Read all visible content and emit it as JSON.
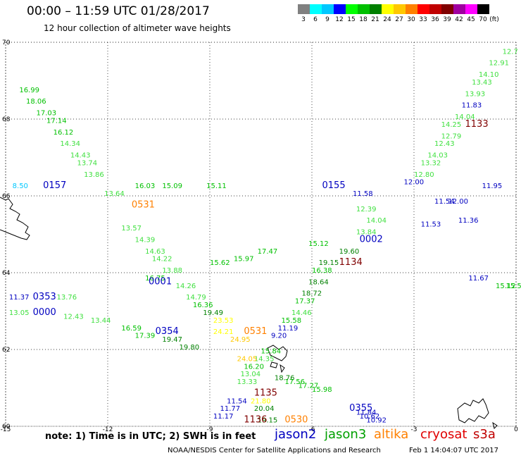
{
  "title": "00:00 – 11:59 UTC 01/28/2017",
  "subtitle": "12 hour collection of altimeter wave heights",
  "colorbar": {
    "unit": "(ft)",
    "ticks": [
      "3",
      "6",
      "9",
      "12",
      "15",
      "18",
      "21",
      "24",
      "27",
      "30",
      "33",
      "36",
      "39",
      "42",
      "45",
      "70"
    ],
    "colors": [
      "#808080",
      "#00ffff",
      "#00c8ff",
      "#0000ff",
      "#00ff00",
      "#00c000",
      "#008000",
      "#ffff00",
      "#ffc800",
      "#ff8000",
      "#ff0000",
      "#c00000",
      "#800000",
      "#a000a0",
      "#ff00ff",
      "#000000"
    ]
  },
  "axes": {
    "x_ticks": [
      "-15",
      "-12",
      "-9",
      "-6",
      "-3",
      "0"
    ],
    "y_ticks": [
      "70",
      "68",
      "66",
      "64",
      "62",
      "60"
    ]
  },
  "track_labels": [
    {
      "text": "0157",
      "color": "#0000c0",
      "lon": -13.9,
      "lat": 66.2
    },
    {
      "text": "0531",
      "color": "#ff8000",
      "lon": -11.3,
      "lat": 65.7
    },
    {
      "text": "0155",
      "color": "#0000c0",
      "lon": -5.7,
      "lat": 66.2
    },
    {
      "text": "0002",
      "color": "#0000c0",
      "lon": -4.6,
      "lat": 64.8
    },
    {
      "text": "1134",
      "color": "#800000",
      "lon": -5.2,
      "lat": 64.2
    },
    {
      "text": "1133",
      "color": "#800000",
      "lon": -1.5,
      "lat": 67.8
    },
    {
      "text": "0001",
      "color": "#0000c0",
      "lon": -10.8,
      "lat": 63.7
    },
    {
      "text": "0353",
      "color": "#0000c0",
      "lon": -14.2,
      "lat": 63.3
    },
    {
      "text": "0000",
      "color": "#0000c0",
      "lon": -14.2,
      "lat": 62.9
    },
    {
      "text": "0354",
      "color": "#0000c0",
      "lon": -10.6,
      "lat": 62.4
    },
    {
      "text": "0531",
      "color": "#ff8000",
      "lon": -8.0,
      "lat": 62.4
    },
    {
      "text": "1135",
      "color": "#800000",
      "lon": -7.7,
      "lat": 60.8
    },
    {
      "text": "1136",
      "color": "#800000",
      "lon": -8.0,
      "lat": 60.1
    },
    {
      "text": "0530",
      "color": "#ff8000",
      "lon": -6.8,
      "lat": 60.1
    },
    {
      "text": "0355",
      "color": "#0000c0",
      "lon": -4.9,
      "lat": 60.4
    }
  ],
  "wave_values": [
    {
      "text": "16.99",
      "color": "#00c000",
      "lon": -14.6,
      "lat": 68.7
    },
    {
      "text": "18.06",
      "color": "#00c000",
      "lon": -14.4,
      "lat": 68.4
    },
    {
      "text": "17.03",
      "color": "#00c000",
      "lon": -14.1,
      "lat": 68.1
    },
    {
      "text": "17.14",
      "color": "#00c000",
      "lon": -13.8,
      "lat": 67.9
    },
    {
      "text": "16.12",
      "color": "#00c000",
      "lon": -13.6,
      "lat": 67.6
    },
    {
      "text": "14.34",
      "color": "#40e040",
      "lon": -13.4,
      "lat": 67.3
    },
    {
      "text": "14.43",
      "color": "#40e040",
      "lon": -13.1,
      "lat": 67.0
    },
    {
      "text": "13.74",
      "color": "#40e040",
      "lon": -12.9,
      "lat": 66.8
    },
    {
      "text": "13.86",
      "color": "#40e040",
      "lon": -12.7,
      "lat": 66.5
    },
    {
      "text": "8.50",
      "color": "#00c8ff",
      "lon": -14.8,
      "lat": 66.2
    },
    {
      "text": "16.03",
      "color": "#00c000",
      "lon": -11.2,
      "lat": 66.2
    },
    {
      "text": "15.09",
      "color": "#00c000",
      "lon": -10.4,
      "lat": 66.2
    },
    {
      "text": "15.11",
      "color": "#00c000",
      "lon": -9.1,
      "lat": 66.2
    },
    {
      "text": "13.64",
      "color": "#40e040",
      "lon": -12.1,
      "lat": 66.0
    },
    {
      "text": "13.57",
      "color": "#40e040",
      "lon": -11.6,
      "lat": 65.1
    },
    {
      "text": "14.39",
      "color": "#40e040",
      "lon": -11.2,
      "lat": 64.8
    },
    {
      "text": "14.63",
      "color": "#40e040",
      "lon": -10.9,
      "lat": 64.5
    },
    {
      "text": "14.22",
      "color": "#40e040",
      "lon": -10.7,
      "lat": 64.3
    },
    {
      "text": "13.88",
      "color": "#40e040",
      "lon": -10.4,
      "lat": 64.0
    },
    {
      "text": "16.75",
      "color": "#00c000",
      "lon": -10.9,
      "lat": 63.8
    },
    {
      "text": "14.26",
      "color": "#40e040",
      "lon": -10.0,
      "lat": 63.6
    },
    {
      "text": "14.79",
      "color": "#40e040",
      "lon": -9.7,
      "lat": 63.3
    },
    {
      "text": "16.36",
      "color": "#00c000",
      "lon": -9.5,
      "lat": 63.1
    },
    {
      "text": "19.49",
      "color": "#008000",
      "lon": -9.2,
      "lat": 62.9
    },
    {
      "text": "15.62",
      "color": "#00c000",
      "lon": -9.0,
      "lat": 64.2
    },
    {
      "text": "15.97",
      "color": "#00c000",
      "lon": -8.3,
      "lat": 64.3
    },
    {
      "text": "17.47",
      "color": "#00c000",
      "lon": -7.6,
      "lat": 64.5
    },
    {
      "text": "15.12",
      "color": "#00c000",
      "lon": -6.1,
      "lat": 64.7
    },
    {
      "text": "19.60",
      "color": "#008000",
      "lon": -5.2,
      "lat": 64.5
    },
    {
      "text": "19.15",
      "color": "#008000",
      "lon": -5.8,
      "lat": 64.2
    },
    {
      "text": "16.38",
      "color": "#00c000",
      "lon": -6.0,
      "lat": 64.0
    },
    {
      "text": "18.64",
      "color": "#008000",
      "lon": -6.1,
      "lat": 63.7
    },
    {
      "text": "18.72",
      "color": "#008000",
      "lon": -6.3,
      "lat": 63.4
    },
    {
      "text": "17.37",
      "color": "#00c000",
      "lon": -6.5,
      "lat": 63.2
    },
    {
      "text": "14.46",
      "color": "#40e040",
      "lon": -6.6,
      "lat": 62.9
    },
    {
      "text": "15.58",
      "color": "#00c000",
      "lon": -6.9,
      "lat": 62.7
    },
    {
      "text": "11.19",
      "color": "#0000c0",
      "lon": -7.0,
      "lat": 62.5
    },
    {
      "text": "9.20",
      "color": "#0000c0",
      "lon": -7.2,
      "lat": 62.3
    },
    {
      "text": "15.84",
      "color": "#00c000",
      "lon": -7.5,
      "lat": 61.9
    },
    {
      "text": "14.35",
      "color": "#40e040",
      "lon": -7.7,
      "lat": 61.7
    },
    {
      "text": "16.20",
      "color": "#00c000",
      "lon": -8.0,
      "lat": 61.5
    },
    {
      "text": "18.76",
      "color": "#008000",
      "lon": -7.1,
      "lat": 61.2
    },
    {
      "text": "17.56",
      "color": "#00c000",
      "lon": -6.8,
      "lat": 61.1
    },
    {
      "text": "17.27",
      "color": "#00c000",
      "lon": -6.4,
      "lat": 61.0
    },
    {
      "text": "15.98",
      "color": "#00c000",
      "lon": -6.0,
      "lat": 60.9
    },
    {
      "text": "13.33",
      "color": "#40e040",
      "lon": -8.2,
      "lat": 61.1
    },
    {
      "text": "13.04",
      "color": "#40e040",
      "lon": -8.1,
      "lat": 61.3
    },
    {
      "text": "11.54",
      "color": "#0000c0",
      "lon": -8.5,
      "lat": 60.6
    },
    {
      "text": "11.77",
      "color": "#0000c0",
      "lon": -8.7,
      "lat": 60.4
    },
    {
      "text": "11.17",
      "color": "#0000c0",
      "lon": -8.9,
      "lat": 60.2
    },
    {
      "text": "20.04",
      "color": "#008000",
      "lon": -7.7,
      "lat": 60.4
    },
    {
      "text": "19.15",
      "color": "#008000",
      "lon": -7.6,
      "lat": 60.1
    },
    {
      "text": "23.53",
      "color": "#ffff00",
      "lon": -8.9,
      "lat": 62.7
    },
    {
      "text": "24.21",
      "color": "#ffff00",
      "lon": -8.9,
      "lat": 62.4
    },
    {
      "text": "24.95",
      "color": "#ffc800",
      "lon": -8.4,
      "lat": 62.2
    },
    {
      "text": "24.05",
      "color": "#ffc800",
      "lon": -8.2,
      "lat": 61.7
    },
    {
      "text": "21.80",
      "color": "#ffff00",
      "lon": -7.8,
      "lat": 60.6
    },
    {
      "text": "11.37",
      "color": "#0000c0",
      "lon": -14.9,
      "lat": 63.3
    },
    {
      "text": "13.76",
      "color": "#40e040",
      "lon": -13.5,
      "lat": 63.3
    },
    {
      "text": "13.05",
      "color": "#40e040",
      "lon": -14.9,
      "lat": 62.9
    },
    {
      "text": "12.43",
      "color": "#40e040",
      "lon": -13.3,
      "lat": 62.8
    },
    {
      "text": "13.44",
      "color": "#40e040",
      "lon": -12.5,
      "lat": 62.7
    },
    {
      "text": "16.59",
      "color": "#00c000",
      "lon": -11.6,
      "lat": 62.5
    },
    {
      "text": "17.39",
      "color": "#00c000",
      "lon": -11.2,
      "lat": 62.3
    },
    {
      "text": "19.47",
      "color": "#008000",
      "lon": -10.4,
      "lat": 62.2
    },
    {
      "text": "19.80",
      "color": "#008000",
      "lon": -9.9,
      "lat": 62.0
    },
    {
      "text": "11.58",
      "color": "#0000c0",
      "lon": -4.8,
      "lat": 66.0
    },
    {
      "text": "12.00",
      "color": "#0000c0",
      "lon": -3.3,
      "lat": 66.3
    },
    {
      "text": "11.95",
      "color": "#0000c0",
      "lon": -1.0,
      "lat": 66.2
    },
    {
      "text": "11.54",
      "color": "#0000c0",
      "lon": -2.4,
      "lat": 65.8
    },
    {
      "text": "12.00",
      "color": "#0000c0",
      "lon": -2.0,
      "lat": 65.8
    },
    {
      "text": "11.53",
      "color": "#0000c0",
      "lon": -2.8,
      "lat": 65.2
    },
    {
      "text": "11.36",
      "color": "#0000c0",
      "lon": -1.7,
      "lat": 65.3
    },
    {
      "text": "11.67",
      "color": "#0000c0",
      "lon": -1.4,
      "lat": 63.8
    },
    {
      "text": "11.84",
      "color": "#0000c0",
      "lon": -4.7,
      "lat": 60.3
    },
    {
      "text": "10.92",
      "color": "#0000c0",
      "lon": -4.4,
      "lat": 60.1
    },
    {
      "text": "10.62",
      "color": "#0000c0",
      "lon": -4.6,
      "lat": 60.2
    },
    {
      "text": "12.39",
      "color": "#40e040",
      "lon": -4.7,
      "lat": 65.6
    },
    {
      "text": "14.04",
      "color": "#40e040",
      "lon": -4.4,
      "lat": 65.3
    },
    {
      "text": "13.84",
      "color": "#40e040",
      "lon": -4.7,
      "lat": 65.0
    },
    {
      "text": "11.83",
      "color": "#0000c0",
      "lon": -1.6,
      "lat": 68.3
    },
    {
      "text": "14.04",
      "color": "#40e040",
      "lon": -1.8,
      "lat": 68.0
    },
    {
      "text": "14.25",
      "color": "#40e040",
      "lon": -2.2,
      "lat": 67.8
    },
    {
      "text": "12.79",
      "color": "#40e040",
      "lon": -2.2,
      "lat": 67.5
    },
    {
      "text": "12.43",
      "color": "#40e040",
      "lon": -2.4,
      "lat": 67.3
    },
    {
      "text": "14.03",
      "color": "#40e040",
      "lon": -2.6,
      "lat": 67.0
    },
    {
      "text": "13.32",
      "color": "#40e040",
      "lon": -2.8,
      "lat": 66.8
    },
    {
      "text": "12.80",
      "color": "#40e040",
      "lon": -3.0,
      "lat": 66.5
    },
    {
      "text": "13.93",
      "color": "#40e040",
      "lon": -1.5,
      "lat": 68.6
    },
    {
      "text": "13.43",
      "color": "#40e040",
      "lon": -1.3,
      "lat": 68.9
    },
    {
      "text": "14.10",
      "color": "#40e040",
      "lon": -1.1,
      "lat": 69.1
    },
    {
      "text": "12.91",
      "color": "#40e040",
      "lon": -0.8,
      "lat": 69.4
    },
    {
      "text": "12.7",
      "color": "#40e040",
      "lon": -0.4,
      "lat": 69.7
    },
    {
      "text": "15.12",
      "color": "#00c000",
      "lon": -0.6,
      "lat": 63.6
    },
    {
      "text": "15.50",
      "color": "#00c000",
      "lon": -0.3,
      "lat": 63.6
    }
  ],
  "note": "note: 1) Time is in UTC; 2) SWH is in feet",
  "satellites": [
    {
      "name": "jason2",
      "color": "#0000c0"
    },
    {
      "name": "jason3",
      "color": "#00a000"
    },
    {
      "name": "altika",
      "color": "#ff8000"
    },
    {
      "name": "cryosat",
      "color": "#e00000"
    },
    {
      "name": "s3a",
      "color": "#c00000"
    }
  ],
  "footer_left": "NOAA/NESDIS Center for Satellite Applications and Research",
  "footer_right": "Feb  1 14:04:07 UTC 2017"
}
